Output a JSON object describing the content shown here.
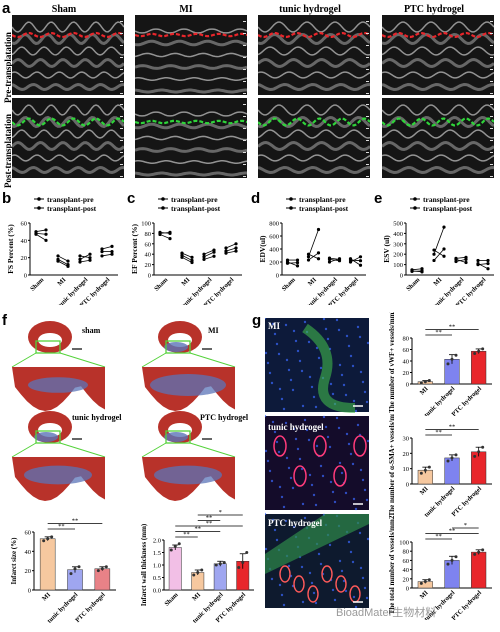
{
  "panel_labels": {
    "a": "a",
    "b": "b",
    "c": "c",
    "d": "d",
    "e": "e",
    "f": "f",
    "g": "g"
  },
  "panel_a": {
    "columns": [
      "Sham",
      "MI",
      "tunic hydrogel",
      "PTC hydrogel"
    ],
    "rows": [
      "Pre-transplatation",
      "Post-transplatation"
    ],
    "colors": {
      "pre_trace": "#e8262b",
      "post_trace": "#2fd43a",
      "background": "#1a1a1a"
    }
  },
  "legend": {
    "pre": "transplant-pre",
    "post": "transplant-post"
  },
  "groups": [
    "Sham",
    "MI",
    "tunic hydrogel",
    "PTC hydrogel"
  ],
  "panel_f": {
    "labels": [
      "sham",
      "MI",
      "tunic hydrogel",
      "PTC hydrogel"
    ],
    "colors": {
      "red": "#b8322a",
      "blue": "#5b74b8",
      "box": "#54d23a"
    }
  },
  "panel_g": {
    "labels": [
      "MI",
      "tunic hydrogel",
      "PTC hydrogel"
    ]
  },
  "watermark": "BioadMater生物材料",
  "chart_data": [
    {
      "id": "b",
      "type": "line",
      "ylabel": "FS Percent (%)",
      "ylim": [
        0,
        60
      ],
      "yticks": [
        0,
        20,
        40,
        60
      ],
      "categories": [
        "Sham",
        "MI",
        "tunic hydrogel",
        "PTC hydrogel"
      ],
      "series": [
        {
          "name": "transplant-pre",
          "values": [
            [
              50,
              47,
              48
            ],
            [
              22,
              18,
              16
            ],
            [
              22,
              18,
              15
            ],
            [
              30,
              27,
              22
            ]
          ]
        },
        {
          "name": "transplant-post",
          "values": [
            [
              52,
              40,
              47
            ],
            [
              16,
              12,
              10
            ],
            [
              20,
              24,
              17
            ],
            [
              33,
              27,
              24
            ]
          ]
        }
      ]
    },
    {
      "id": "c",
      "type": "line",
      "ylabel": "EF Percent (%)",
      "ylim": [
        0,
        100
      ],
      "yticks": [
        0,
        20,
        40,
        60,
        80,
        100
      ],
      "categories": [
        "Sham",
        "MI",
        "tunic hydrogel",
        "PTC hydrogel"
      ],
      "series": [
        {
          "name": "transplant-pre",
          "values": [
            [
              80,
              78,
              82
            ],
            [
              42,
              38,
              34
            ],
            [
              40,
              35,
              30
            ],
            [
              52,
              46,
              42
            ]
          ]
        },
        {
          "name": "transplant-post",
          "values": [
            [
              82,
              70,
              80
            ],
            [
              34,
              28,
              24
            ],
            [
              48,
              44,
              36
            ],
            [
              60,
              52,
              46
            ]
          ]
        }
      ]
    },
    {
      "id": "d",
      "type": "line",
      "ylabel": "EDV(ul)",
      "ylim": [
        0,
        800
      ],
      "yticks": [
        0,
        200,
        400,
        600,
        800
      ],
      "categories": [
        "Sham",
        "MI",
        "tunic hydrogel",
        "PTC hydrogel"
      ],
      "series": [
        {
          "name": "transplant-pre",
          "values": [
            [
              200,
              230,
              180
            ],
            [
              280,
              230,
              320
            ],
            [
              260,
              240,
              200
            ],
            [
              250,
              230,
              200
            ]
          ]
        },
        {
          "name": "transplant-post",
          "values": [
            [
              140,
              230,
              190
            ],
            [
              700,
              340,
              250
            ],
            [
              240,
              220,
              250
            ],
            [
              150,
              220,
              280
            ]
          ]
        }
      ]
    },
    {
      "id": "e",
      "type": "line",
      "ylabel": "ESV (ul)",
      "ylim": [
        0,
        500
      ],
      "yticks": [
        0,
        100,
        200,
        300,
        400,
        500
      ],
      "categories": [
        "Sham",
        "MI",
        "tunic hydrogel",
        "PTC hydrogel"
      ],
      "series": [
        {
          "name": "transplant-pre",
          "values": [
            [
              40,
              50,
              35
            ],
            [
              200,
              140,
              240
            ],
            [
              130,
              150,
              160
            ],
            [
              110,
              100,
              140
            ]
          ]
        },
        {
          "name": "transplant-post",
          "values": [
            [
              30,
              60,
              40
            ],
            [
              460,
              250,
              180
            ],
            [
              150,
              120,
              170
            ],
            [
              60,
              110,
              140
            ]
          ]
        }
      ]
    },
    {
      "id": "f1",
      "type": "bar",
      "ylabel": "Infarct size (%)",
      "ylim": [
        0,
        60
      ],
      "yticks": [
        0,
        20,
        40,
        60
      ],
      "categories": [
        "MI",
        "tunic hydrogel",
        "PTC hydrogel"
      ],
      "values": [
        53,
        21,
        22
      ],
      "errors": [
        2,
        3,
        2
      ],
      "points": [
        [
          51,
          53,
          55
        ],
        [
          17,
          22,
          24
        ],
        [
          20,
          22,
          24
        ]
      ],
      "colors": [
        "#f6c89f",
        "#9fa6f0",
        "#e88287"
      ],
      "significance": [
        {
          "from": 0,
          "to": 1,
          "label": "**"
        },
        {
          "from": 0,
          "to": 2,
          "label": "**"
        }
      ]
    },
    {
      "id": "f2",
      "type": "bar",
      "ylabel": "Infarct wall thickness (mm)",
      "ylim": [
        0.0,
        2.0
      ],
      "yticks": [
        0.0,
        0.5,
        1.0,
        1.5,
        2.0
      ],
      "categories": [
        "Sham",
        "MI",
        "tunic hydrogel",
        "PTC hydrogel"
      ],
      "values": [
        1.7,
        0.7,
        1.05,
        1.15
      ],
      "errors": [
        0.1,
        0.1,
        0.1,
        0.3
      ],
      "points": [
        [
          1.6,
          1.75,
          1.85
        ],
        [
          0.6,
          0.7,
          0.8
        ],
        [
          1.0,
          1.05,
          1.1
        ],
        [
          0.9,
          1.1,
          1.5
        ]
      ],
      "colors": [
        "#f2bfe6",
        "#f6c89f",
        "#9fa6f0",
        "#e8262b"
      ],
      "significance": [
        {
          "from": 0,
          "to": 1,
          "label": "**"
        },
        {
          "from": 0,
          "to": 2,
          "label": "**"
        },
        {
          "from": 0,
          "to": 3,
          "label": "**"
        },
        {
          "from": 1,
          "to": 2,
          "label": "**"
        },
        {
          "from": 1,
          "to": 3,
          "label": "*"
        }
      ]
    },
    {
      "id": "g1",
      "type": "bar",
      "ylabel": "The number of vWF+ vessels/mm2",
      "ylim": [
        0,
        80
      ],
      "yticks": [
        0,
        20,
        40,
        60,
        80
      ],
      "categories": [
        "MI",
        "tunic hydrogel",
        "PTC hydrogel"
      ],
      "values": [
        4,
        43,
        57
      ],
      "errors": [
        2,
        8,
        4
      ],
      "points": [
        [
          2,
          4,
          6
        ],
        [
          35,
          43,
          50
        ],
        [
          53,
          57,
          61
        ]
      ],
      "colors": [
        "#f6c89f",
        "#7e83ef",
        "#e8262b"
      ],
      "significance": [
        {
          "from": 0,
          "to": 1,
          "label": "**"
        },
        {
          "from": 0,
          "to": 2,
          "label": "**"
        }
      ]
    },
    {
      "id": "g2",
      "type": "bar",
      "ylabel": "The number of α-SMA+ vessels/mm2",
      "ylim": [
        0,
        30
      ],
      "yticks": [
        0,
        10,
        20,
        30
      ],
      "categories": [
        "MI",
        "tunic hydrogel",
        "PTC hydrogel"
      ],
      "values": [
        9,
        17,
        21
      ],
      "errors": [
        2,
        2,
        3
      ],
      "points": [
        [
          7,
          9,
          11
        ],
        [
          15,
          17,
          19
        ],
        [
          18,
          21,
          24
        ]
      ],
      "colors": [
        "#f6c89f",
        "#7e83ef",
        "#e8262b"
      ],
      "significance": [
        {
          "from": 0,
          "to": 1,
          "label": "**"
        },
        {
          "from": 0,
          "to": 2,
          "label": "**"
        }
      ]
    },
    {
      "id": "g3",
      "type": "bar",
      "ylabel": "The total number of vessels/mm2",
      "ylim": [
        0,
        100
      ],
      "yticks": [
        0,
        20,
        40,
        60,
        80,
        100
      ],
      "categories": [
        "MI",
        "tunic hydrogel",
        "PTC hydrogel"
      ],
      "values": [
        14,
        60,
        78
      ],
      "errors": [
        4,
        9,
        5
      ],
      "points": [
        [
          10,
          14,
          18
        ],
        [
          52,
          60,
          68
        ],
        [
          73,
          78,
          83
        ]
      ],
      "colors": [
        "#f6c89f",
        "#7e83ef",
        "#e8262b"
      ],
      "significance": [
        {
          "from": 0,
          "to": 1,
          "label": "**"
        },
        {
          "from": 0,
          "to": 2,
          "label": "**"
        },
        {
          "from": 1,
          "to": 2,
          "label": "*"
        }
      ]
    }
  ]
}
